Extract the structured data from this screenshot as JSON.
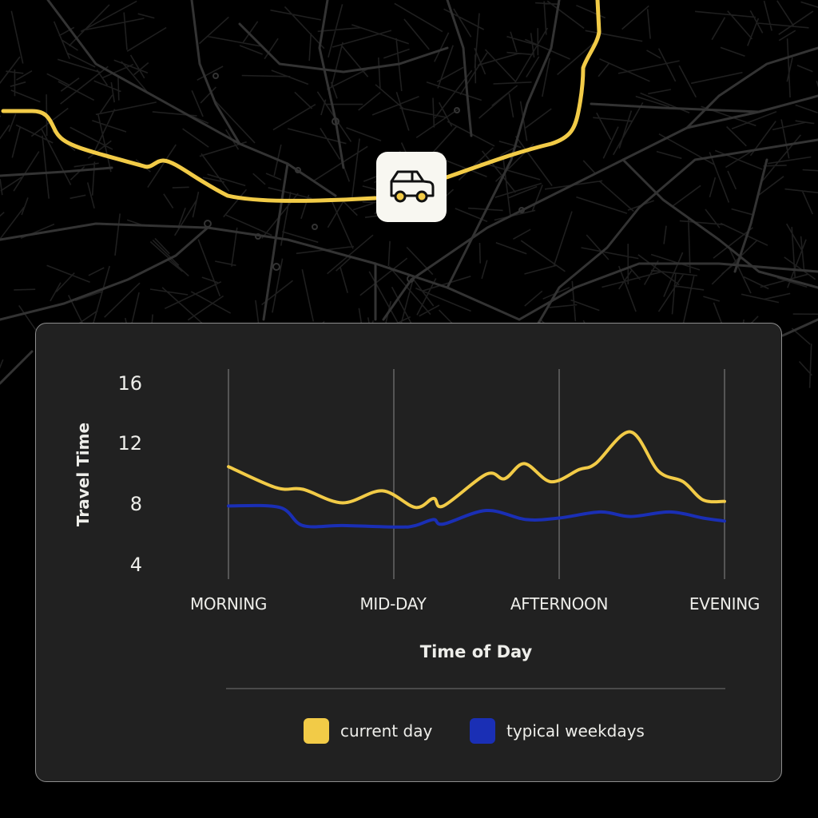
{
  "map": {
    "background": "#000000",
    "street_color": "#2e2e2e",
    "route_color": "#f2cb47",
    "marker": {
      "icon": "car-icon",
      "background": "#f8f7f1"
    }
  },
  "chart_data": {
    "type": "line",
    "title": "",
    "xlabel": "Time of Day",
    "ylabel": "Travel Time",
    "x_categories": [
      "MORNING",
      "MID-DAY",
      "AFTERNOON",
      "EVENING"
    ],
    "y_ticks": [
      16,
      12,
      8,
      4
    ],
    "ylim": [
      4,
      16
    ],
    "grid": {
      "vertical": true,
      "horizontal": false
    },
    "legend_position": "bottom",
    "x_domain": [
      0,
      3
    ],
    "series": [
      {
        "name": "current day",
        "color": "#f2cb47",
        "points": [
          [
            0.0,
            10.6
          ],
          [
            0.29,
            9.2
          ],
          [
            0.45,
            9.1
          ],
          [
            0.69,
            8.2
          ],
          [
            0.93,
            9.0
          ],
          [
            1.13,
            7.9
          ],
          [
            1.24,
            8.5
          ],
          [
            1.3,
            8.0
          ],
          [
            1.56,
            10.1
          ],
          [
            1.67,
            9.8
          ],
          [
            1.79,
            10.8
          ],
          [
            1.95,
            9.6
          ],
          [
            2.12,
            10.4
          ],
          [
            2.22,
            10.8
          ],
          [
            2.43,
            12.9
          ],
          [
            2.6,
            10.3
          ],
          [
            2.75,
            9.6
          ],
          [
            2.87,
            8.4
          ],
          [
            3.0,
            8.3
          ]
        ]
      },
      {
        "name": "typical weekdays",
        "color": "#1a2fb5",
        "points": [
          [
            0.0,
            8.0
          ],
          [
            0.31,
            7.9
          ],
          [
            0.45,
            6.7
          ],
          [
            0.69,
            6.7
          ],
          [
            1.03,
            6.6
          ],
          [
            1.13,
            6.7
          ],
          [
            1.24,
            7.1
          ],
          [
            1.3,
            6.8
          ],
          [
            1.56,
            7.7
          ],
          [
            1.8,
            7.1
          ],
          [
            2.0,
            7.2
          ],
          [
            2.25,
            7.6
          ],
          [
            2.43,
            7.3
          ],
          [
            2.67,
            7.6
          ],
          [
            2.87,
            7.2
          ],
          [
            3.0,
            7.0
          ]
        ]
      }
    ]
  },
  "legend": [
    {
      "label": "current day",
      "color": "#f2cb47"
    },
    {
      "label": "typical weekdays",
      "color": "#1a2fb5"
    }
  ]
}
